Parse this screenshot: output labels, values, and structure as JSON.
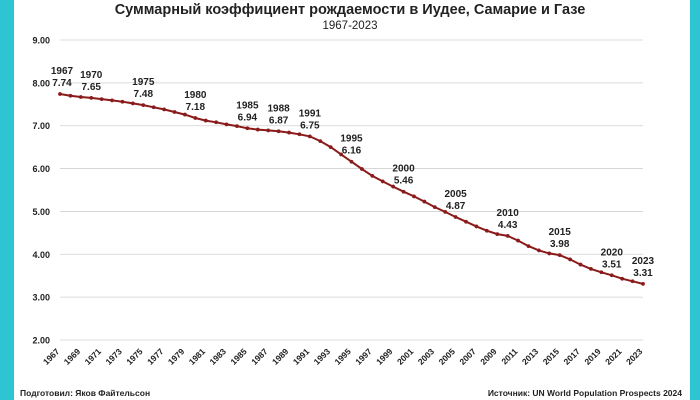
{
  "chart_data": {
    "type": "line",
    "title": "Суммарный коэффициент рождаемости в Иудее, Самарие и Газе",
    "subtitle": "1967-2023",
    "ylim": [
      2.0,
      9.0
    ],
    "yticks": [
      "2.00",
      "3.00",
      "4.00",
      "5.00",
      "6.00",
      "7.00",
      "8.00",
      "9.00"
    ],
    "xticks": [
      "1967",
      "1969",
      "1971",
      "1973",
      "1975",
      "1977",
      "1979",
      "1981",
      "1983",
      "1985",
      "1987",
      "1989",
      "1991",
      "1993",
      "1995",
      "1997",
      "1999",
      "2001",
      "2003",
      "2005",
      "2007",
      "2009",
      "2011",
      "2013",
      "2015",
      "2017",
      "2019",
      "2021",
      "2023"
    ],
    "grid": true,
    "series": [
      {
        "color": "#8b1a1a",
        "x": [
          1967,
          1968,
          1969,
          1970,
          1971,
          1972,
          1973,
          1974,
          1975,
          1976,
          1977,
          1978,
          1979,
          1980,
          1981,
          1982,
          1983,
          1984,
          1985,
          1986,
          1987,
          1988,
          1989,
          1990,
          1991,
          1992,
          1993,
          1994,
          1995,
          1996,
          1997,
          1998,
          1999,
          2000,
          2001,
          2002,
          2003,
          2004,
          2005,
          2006,
          2007,
          2008,
          2009,
          2010,
          2011,
          2012,
          2013,
          2014,
          2015,
          2016,
          2017,
          2018,
          2019,
          2020,
          2021,
          2022,
          2023
        ],
        "y": [
          7.74,
          7.7,
          7.67,
          7.65,
          7.62,
          7.59,
          7.56,
          7.52,
          7.48,
          7.43,
          7.38,
          7.32,
          7.26,
          7.18,
          7.12,
          7.08,
          7.03,
          6.99,
          6.94,
          6.91,
          6.89,
          6.87,
          6.84,
          6.8,
          6.75,
          6.64,
          6.5,
          6.33,
          6.16,
          5.99,
          5.83,
          5.7,
          5.58,
          5.46,
          5.35,
          5.23,
          5.1,
          4.99,
          4.87,
          4.76,
          4.65,
          4.55,
          4.47,
          4.43,
          4.32,
          4.19,
          4.09,
          4.02,
          3.98,
          3.88,
          3.76,
          3.66,
          3.58,
          3.51,
          3.43,
          3.37,
          3.31
        ]
      }
    ],
    "data_labels": [
      {
        "year": "1967",
        "value": "7.74"
      },
      {
        "year": "1970",
        "value": "7.65"
      },
      {
        "year": "1975",
        "value": "7.48"
      },
      {
        "year": "1980",
        "value": "7.18"
      },
      {
        "year": "1985",
        "value": "6.94"
      },
      {
        "year": "1988",
        "value": "6.87"
      },
      {
        "year": "1991",
        "value": "6.75"
      },
      {
        "year": "1995",
        "value": "6.16"
      },
      {
        "year": "2000",
        "value": "5.46"
      },
      {
        "year": "2005",
        "value": "4.87"
      },
      {
        "year": "2010",
        "value": "4.43"
      },
      {
        "year": "2015",
        "value": "3.98"
      },
      {
        "year": "2020",
        "value": "3.51"
      },
      {
        "year": "2023",
        "value": "3.31"
      }
    ]
  },
  "footer": {
    "left": "Подготовил: Яков Файтельсон",
    "right": "Источник: UN World Population Prospects 2024"
  },
  "colors": {
    "accent": "#2ec5d3",
    "line": "#8b1a1a",
    "grid": "#d0d0d0"
  }
}
